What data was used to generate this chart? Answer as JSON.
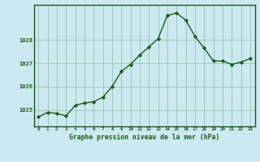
{
  "x": [
    0,
    1,
    2,
    3,
    4,
    5,
    6,
    7,
    8,
    9,
    10,
    11,
    12,
    13,
    14,
    15,
    16,
    17,
    18,
    19,
    20,
    21,
    22,
    23
  ],
  "y": [
    1024.7,
    1024.9,
    1024.85,
    1024.75,
    1025.2,
    1025.3,
    1025.35,
    1025.55,
    1026.0,
    1026.65,
    1026.95,
    1027.35,
    1027.7,
    1028.05,
    1029.05,
    1029.15,
    1028.85,
    1028.15,
    1027.65,
    1027.1,
    1027.1,
    1026.95,
    1027.05,
    1027.2
  ],
  "line_color": "#1a5c1a",
  "marker_color": "#1a5c1a",
  "bg_color": "#cce8f0",
  "grid_color": "#99ccbb",
  "title": "Graphe pression niveau de la mer (hPa)",
  "ylabel_ticks": [
    1025,
    1026,
    1027,
    1028
  ],
  "ylim": [
    1024.3,
    1029.5
  ],
  "xlim": [
    -0.5,
    23.5
  ],
  "xticks": [
    0,
    1,
    2,
    3,
    4,
    5,
    6,
    7,
    8,
    9,
    10,
    11,
    12,
    13,
    14,
    15,
    16,
    17,
    18,
    19,
    20,
    21,
    22,
    23
  ]
}
